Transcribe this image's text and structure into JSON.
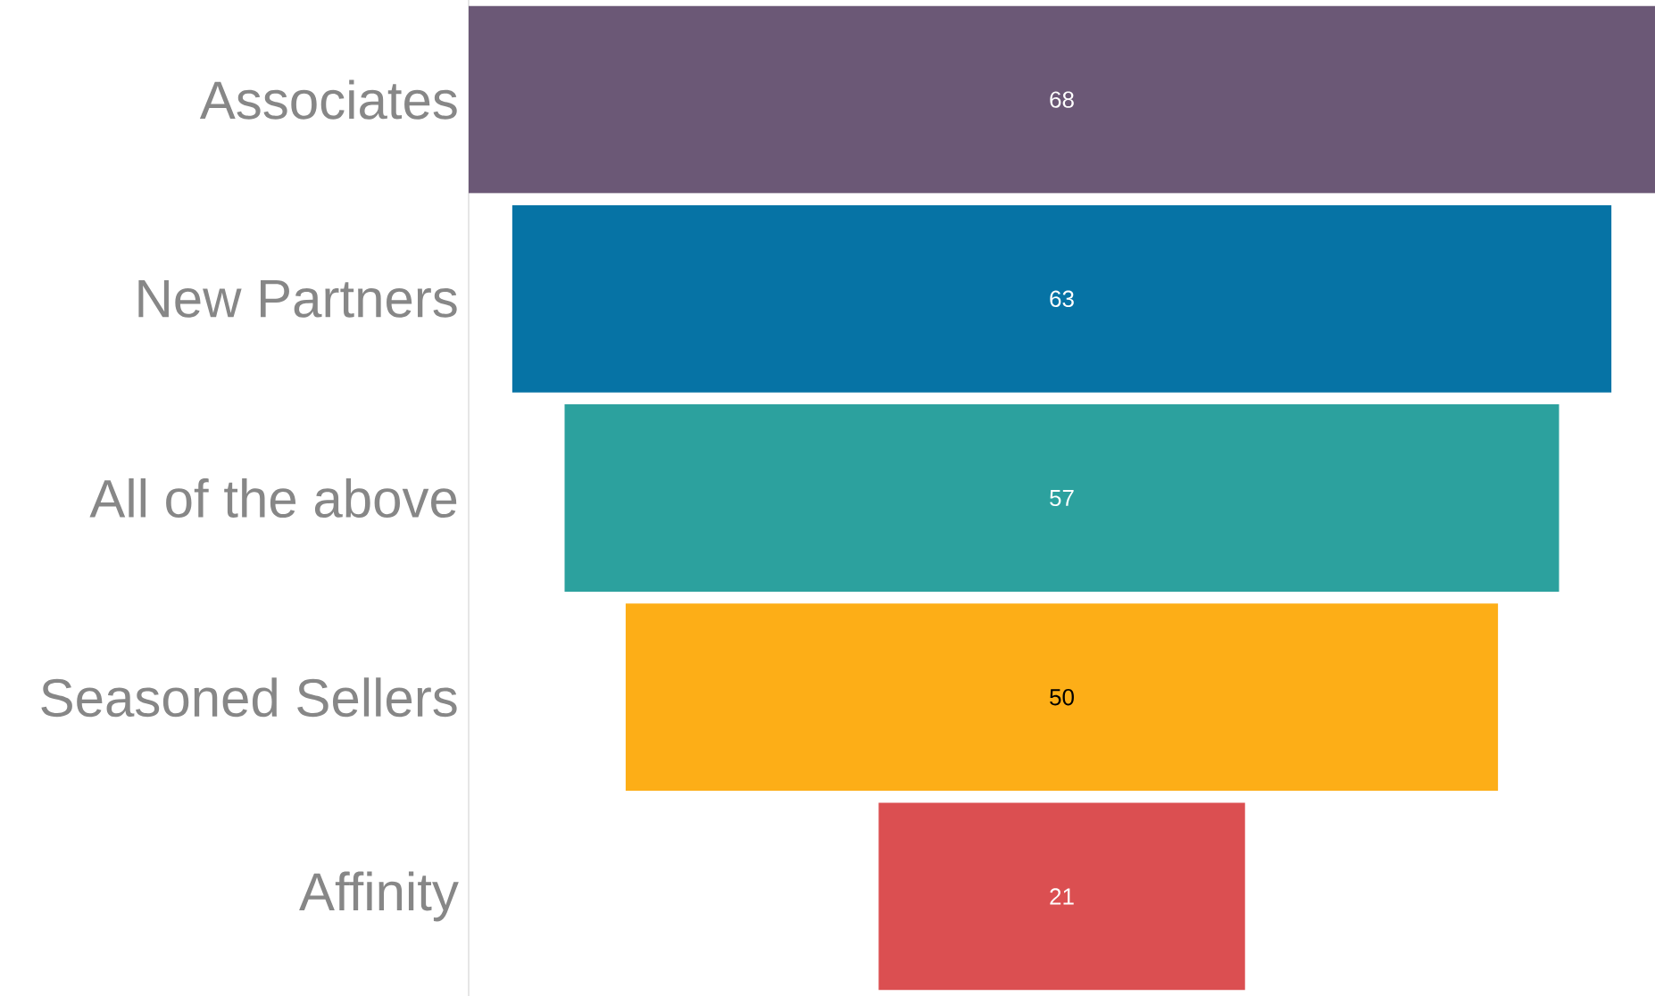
{
  "chart_data": {
    "type": "other",
    "categories": [
      "Associates",
      "New Partners",
      "All of the above",
      "Seasoned Sellers",
      "Affinity"
    ],
    "values": [
      68,
      63,
      57,
      50,
      21
    ],
    "colors": [
      "#6b5876",
      "#0673a5",
      "#2ca19e",
      "#fdae17",
      "#db4f51"
    ],
    "data_labels": true
  }
}
